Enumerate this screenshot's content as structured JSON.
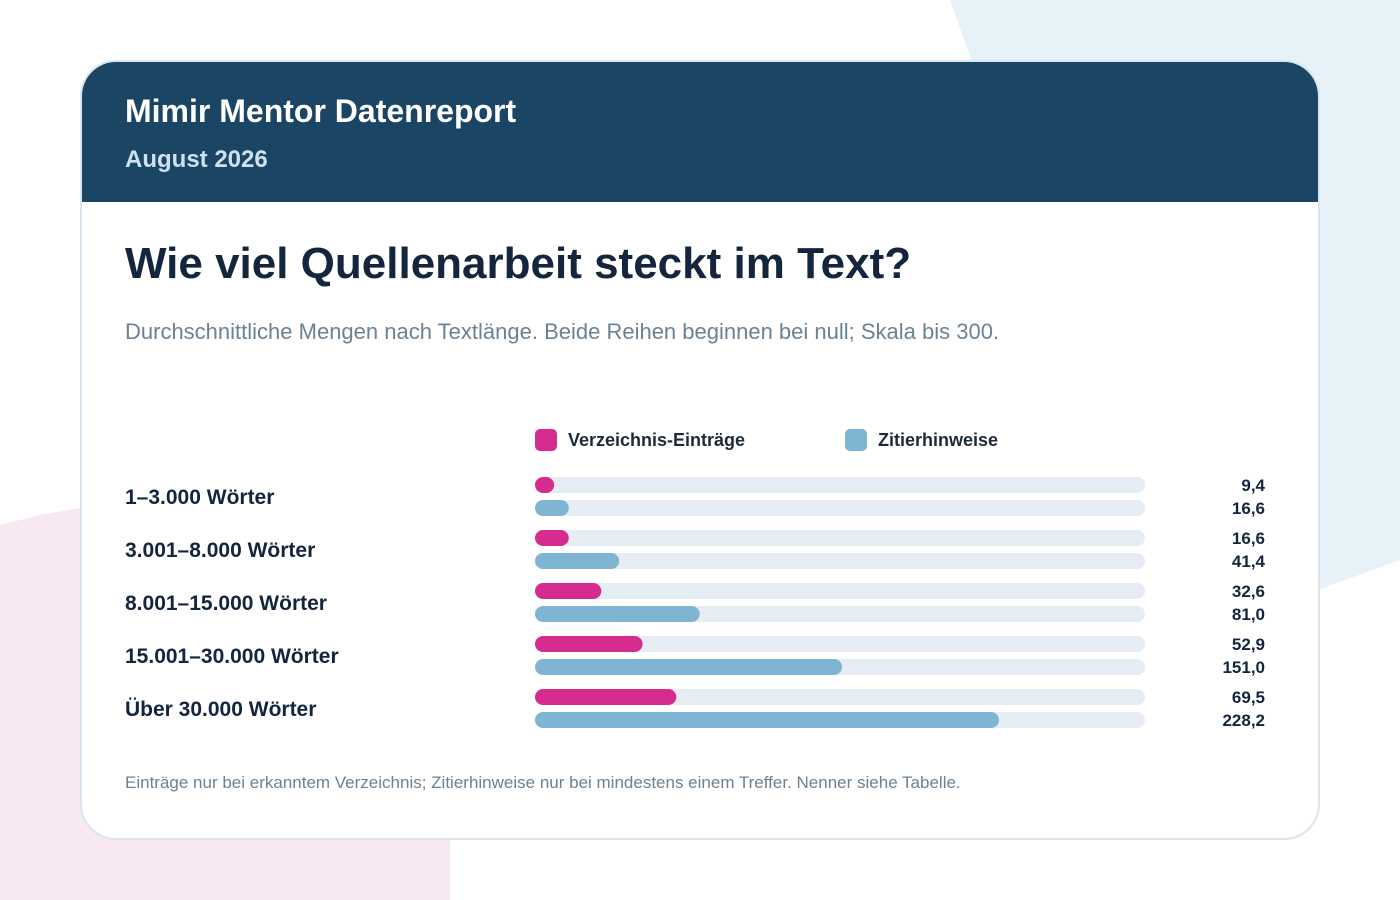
{
  "header": {
    "title": "Mimir Mentor Datenreport",
    "date": "August 2026"
  },
  "chart_data": {
    "type": "bar",
    "orientation": "horizontal",
    "title": "Wie viel Quellenarbeit steckt im Text?",
    "subtitle": "Durchschnittliche Mengen nach Textlänge. Beide Reihen beginnen bei null; Skala bis 300.",
    "xlim": [
      0,
      300
    ],
    "grid": false,
    "legend_position": "top",
    "categories": [
      "1–3.000 Wörter",
      "3.001–8.000 Wörter",
      "8.001–15.000 Wörter",
      "15.001–30.000 Wörter",
      "Über 30.000 Wörter"
    ],
    "series": [
      {
        "name": "Verzeichnis-Einträge",
        "color": "#d62b8f",
        "values": [
          9.4,
          16.6,
          32.6,
          52.9,
          69.5
        ],
        "labels": [
          "9,4",
          "16,6",
          "32,6",
          "52,9",
          "69,5"
        ]
      },
      {
        "name": "Zitierhinweise",
        "color": "#7fb5d2",
        "values": [
          16.6,
          41.4,
          81.0,
          151.0,
          228.2
        ],
        "labels": [
          "16,6",
          "41,4",
          "81,0",
          "151,0",
          "228,2"
        ]
      }
    ],
    "track_color": "#e6ecf4",
    "footnote": "Einträge nur bei erkanntem Verzeichnis; Zitierhinweise nur bei mindestens einem Treffer. Nenner siehe Tabelle."
  }
}
